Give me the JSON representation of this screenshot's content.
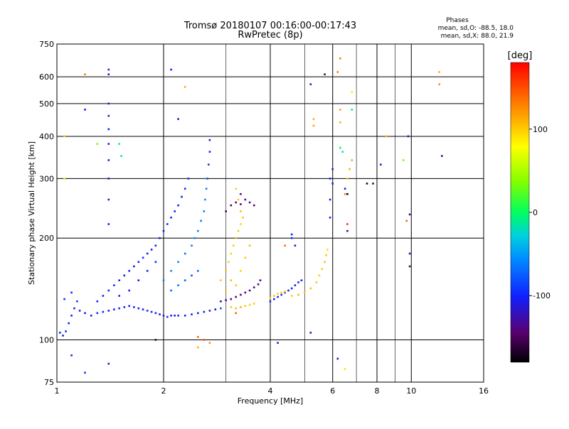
{
  "chart_data": {
    "type": "scatter",
    "title": "Tromsø 20180107 00:16:00-00:17:43",
    "subtitle": "RwPretec (8p)",
    "xlabel": "Frequency [MHz]",
    "ylabel": "Stationary phase Virtual Height [km]",
    "x_scale": "log",
    "y_scale": "log",
    "xlim": [
      1,
      16
    ],
    "ylim": [
      75,
      750
    ],
    "x_ticks": [
      1,
      2,
      4,
      6,
      8,
      10,
      16
    ],
    "x_ticks_minor": [
      3,
      5,
      7,
      9
    ],
    "y_ticks": [
      75,
      100,
      200,
      300,
      400,
      500,
      600,
      750
    ],
    "grid": true,
    "stats": {
      "heading": "Phases",
      "line_o": "mean, sd,O: -88.5, 18.0",
      "line_x": "mean, sd,X: 88.0, 21.9"
    },
    "colorbar": {
      "label": "[deg]",
      "range": [
        -180,
        180
      ],
      "ticks": [
        100,
        0,
        -100
      ]
    },
    "points": [
      [
        1.02,
        105,
        -100
      ],
      [
        1.04,
        103,
        -110
      ],
      [
        1.06,
        106,
        -95
      ],
      [
        1.08,
        112,
        -100
      ],
      [
        1.1,
        118,
        -105
      ],
      [
        1.12,
        124,
        -100
      ],
      [
        1.14,
        130,
        -90
      ],
      [
        1.05,
        132,
        -95
      ],
      [
        1.1,
        138,
        -100
      ],
      [
        1.16,
        122,
        -110
      ],
      [
        1.2,
        120,
        -100
      ],
      [
        1.25,
        118,
        -105
      ],
      [
        1.3,
        120,
        -95
      ],
      [
        1.35,
        121,
        -100
      ],
      [
        1.4,
        122,
        -110
      ],
      [
        1.45,
        123,
        -100
      ],
      [
        1.5,
        124,
        -95
      ],
      [
        1.55,
        125,
        -100
      ],
      [
        1.6,
        126,
        -105
      ],
      [
        1.65,
        125,
        -100
      ],
      [
        1.7,
        124,
        -110
      ],
      [
        1.75,
        123,
        -100
      ],
      [
        1.8,
        122,
        -95
      ],
      [
        1.85,
        121,
        -100
      ],
      [
        1.9,
        120,
        -105
      ],
      [
        1.95,
        119,
        -110
      ],
      [
        2.0,
        118,
        -100
      ],
      [
        2.05,
        117,
        -95
      ],
      [
        2.1,
        118,
        -100
      ],
      [
        2.15,
        118,
        -105
      ],
      [
        2.2,
        118,
        -100
      ],
      [
        2.3,
        118,
        -110
      ],
      [
        2.4,
        119,
        -100
      ],
      [
        2.5,
        120,
        -105
      ],
      [
        2.6,
        121,
        -100
      ],
      [
        2.7,
        122,
        -110
      ],
      [
        2.8,
        123,
        -120
      ],
      [
        2.9,
        124,
        -80
      ],
      [
        1.3,
        130,
        -100
      ],
      [
        1.35,
        135,
        -105
      ],
      [
        1.4,
        140,
        -100
      ],
      [
        1.45,
        145,
        -95
      ],
      [
        1.5,
        150,
        -100
      ],
      [
        1.55,
        155,
        -110
      ],
      [
        1.6,
        160,
        -100
      ],
      [
        1.65,
        165,
        -105
      ],
      [
        1.7,
        170,
        -100
      ],
      [
        1.75,
        175,
        -95
      ],
      [
        1.8,
        180,
        -100
      ],
      [
        1.85,
        185,
        -110
      ],
      [
        1.9,
        190,
        -100
      ],
      [
        1.95,
        200,
        -105
      ],
      [
        2.0,
        210,
        -100
      ],
      [
        2.05,
        220,
        -95
      ],
      [
        2.1,
        230,
        -100
      ],
      [
        2.15,
        240,
        -105
      ],
      [
        2.2,
        250,
        -100
      ],
      [
        2.25,
        265,
        -110
      ],
      [
        2.3,
        280,
        -100
      ],
      [
        2.35,
        300,
        -95
      ],
      [
        1.5,
        135,
        -100
      ],
      [
        1.6,
        140,
        -100
      ],
      [
        1.7,
        150,
        -105
      ],
      [
        1.8,
        160,
        -100
      ],
      [
        1.9,
        170,
        -95
      ],
      [
        2.0,
        150,
        -60
      ],
      [
        2.1,
        160,
        -55
      ],
      [
        2.2,
        170,
        -60
      ],
      [
        2.3,
        180,
        -65
      ],
      [
        2.4,
        190,
        -60
      ],
      [
        2.45,
        200,
        -55
      ],
      [
        2.5,
        210,
        -60
      ],
      [
        2.55,
        225,
        -65
      ],
      [
        2.6,
        240,
        -60
      ],
      [
        2.62,
        260,
        -55
      ],
      [
        2.64,
        280,
        -60
      ],
      [
        2.66,
        300,
        -80
      ],
      [
        2.68,
        330,
        -90
      ],
      [
        2.7,
        360,
        -100
      ],
      [
        2.7,
        390,
        -110
      ],
      [
        2.1,
        140,
        -70
      ],
      [
        2.2,
        145,
        -65
      ],
      [
        2.3,
        150,
        -70
      ],
      [
        2.4,
        155,
        -75
      ],
      [
        2.5,
        160,
        -70
      ],
      [
        1.4,
        220,
        -110
      ],
      [
        1.4,
        260,
        -110
      ],
      [
        1.4,
        300,
        -115
      ],
      [
        1.4,
        340,
        -110
      ],
      [
        1.4,
        380,
        -115
      ],
      [
        1.4,
        420,
        -110
      ],
      [
        1.4,
        460,
        -115
      ],
      [
        1.4,
        500,
        -110
      ],
      [
        1.4,
        610,
        -115
      ],
      [
        1.4,
        630,
        -110
      ],
      [
        1.52,
        350,
        -10
      ],
      [
        1.5,
        380,
        -5
      ],
      [
        1.2,
        480,
        -110
      ],
      [
        1.3,
        380,
        30
      ],
      [
        1.05,
        300,
        70
      ],
      [
        1.05,
        400,
        100
      ],
      [
        1.2,
        610,
        130
      ],
      [
        2.1,
        630,
        -100
      ],
      [
        2.3,
        560,
        110
      ],
      [
        2.2,
        450,
        -120
      ],
      [
        2.9,
        130,
        -140
      ],
      [
        3.0,
        131,
        -135
      ],
      [
        3.1,
        132,
        -140
      ],
      [
        3.2,
        134,
        -145
      ],
      [
        3.3,
        136,
        -140
      ],
      [
        3.4,
        138,
        -135
      ],
      [
        3.5,
        140,
        -140
      ],
      [
        3.6,
        143,
        -145
      ],
      [
        3.7,
        146,
        -140
      ],
      [
        3.75,
        150,
        -135
      ],
      [
        3.1,
        250,
        -150
      ],
      [
        3.2,
        255,
        -140
      ],
      [
        3.3,
        252,
        -145
      ],
      [
        3.0,
        240,
        -150
      ],
      [
        2.9,
        150,
        100
      ],
      [
        3.0,
        160,
        105
      ],
      [
        3.05,
        170,
        100
      ],
      [
        3.1,
        180,
        95
      ],
      [
        3.15,
        190,
        100
      ],
      [
        3.2,
        200,
        105
      ],
      [
        3.25,
        210,
        100
      ],
      [
        3.3,
        220,
        95
      ],
      [
        3.35,
        230,
        100
      ],
      [
        3.3,
        240,
        105
      ],
      [
        3.25,
        260,
        100
      ],
      [
        3.2,
        280,
        95
      ],
      [
        3.0,
        140,
        100
      ],
      [
        3.1,
        150,
        105
      ],
      [
        3.2,
        145,
        100
      ],
      [
        3.3,
        160,
        95
      ],
      [
        3.4,
        175,
        100
      ],
      [
        3.5,
        190,
        105
      ],
      [
        3.1,
        125,
        100
      ],
      [
        3.2,
        124,
        105
      ],
      [
        3.3,
        125,
        110
      ],
      [
        3.4,
        126,
        100
      ],
      [
        3.5,
        127,
        95
      ],
      [
        3.6,
        128,
        100
      ],
      [
        3.3,
        270,
        -140
      ],
      [
        3.4,
        260,
        -130
      ],
      [
        3.5,
        255,
        -135
      ],
      [
        3.6,
        250,
        -140
      ],
      [
        4.0,
        130,
        -100
      ],
      [
        4.1,
        132,
        -105
      ],
      [
        4.2,
        134,
        -100
      ],
      [
        4.3,
        136,
        -95
      ],
      [
        4.4,
        138,
        -100
      ],
      [
        4.5,
        140,
        -105
      ],
      [
        4.6,
        142,
        -100
      ],
      [
        4.7,
        145,
        -110
      ],
      [
        4.8,
        148,
        -100
      ],
      [
        4.9,
        150,
        -105
      ],
      [
        4.0,
        133,
        100
      ],
      [
        4.1,
        135,
        105
      ],
      [
        4.2,
        137,
        100
      ],
      [
        4.3,
        138,
        95
      ],
      [
        4.4,
        139,
        100
      ],
      [
        4.6,
        135,
        100
      ],
      [
        4.8,
        136,
        105
      ],
      [
        5.0,
        138,
        100
      ],
      [
        5.2,
        142,
        105
      ],
      [
        5.4,
        148,
        100
      ],
      [
        5.5,
        155,
        95
      ],
      [
        5.6,
        162,
        100
      ],
      [
        5.7,
        170,
        105
      ],
      [
        5.75,
        178,
        100
      ],
      [
        5.8,
        185,
        95
      ],
      [
        4.6,
        205,
        -100
      ],
      [
        4.6,
        200,
        -95
      ],
      [
        5.2,
        105,
        -120
      ],
      [
        4.2,
        98,
        -110
      ],
      [
        3.2,
        120,
        140
      ],
      [
        2.5,
        102,
        140
      ],
      [
        2.6,
        100,
        150
      ],
      [
        2.7,
        98,
        120
      ],
      [
        2.5,
        95,
        110
      ],
      [
        1.9,
        100,
        -160
      ],
      [
        1.4,
        85,
        -110
      ],
      [
        1.1,
        90,
        -100
      ],
      [
        1.2,
        80,
        -90
      ],
      [
        6.2,
        88,
        -110
      ],
      [
        6.5,
        82,
        90
      ],
      [
        5.9,
        230,
        -100
      ],
      [
        5.9,
        260,
        -105
      ],
      [
        6.0,
        290,
        -110
      ],
      [
        6.0,
        320,
        -100
      ],
      [
        5.9,
        300,
        -95
      ],
      [
        5.7,
        610,
        -150
      ],
      [
        5.2,
        570,
        -110
      ],
      [
        5.3,
        450,
        110
      ],
      [
        5.3,
        430,
        115
      ],
      [
        6.3,
        680,
        130
      ],
      [
        6.2,
        620,
        130
      ],
      [
        6.3,
        480,
        115
      ],
      [
        6.3,
        440,
        110
      ],
      [
        6.3,
        370,
        0
      ],
      [
        6.4,
        360,
        -20
      ],
      [
        6.5,
        280,
        -110
      ],
      [
        6.6,
        300,
        100
      ],
      [
        6.7,
        320,
        110
      ],
      [
        6.8,
        340,
        115
      ],
      [
        6.5,
        270,
        130
      ],
      [
        6.8,
        480,
        -10
      ],
      [
        6.8,
        540,
        60
      ],
      [
        6.6,
        270,
        -180
      ],
      [
        7.5,
        290,
        -160
      ],
      [
        7.8,
        290,
        -150
      ],
      [
        8.2,
        330,
        -110
      ],
      [
        8.5,
        400,
        110
      ],
      [
        9.8,
        400,
        -130
      ],
      [
        9.9,
        235,
        -140
      ],
      [
        9.9,
        180,
        -120
      ],
      [
        9.9,
        165,
        -150
      ],
      [
        9.7,
        225,
        140
      ],
      [
        12.0,
        620,
        110
      ],
      [
        12.0,
        570,
        120
      ],
      [
        12.2,
        350,
        -130
      ],
      [
        9.5,
        340,
        30
      ],
      [
        4.7,
        190,
        -120
      ],
      [
        4.4,
        190,
        140
      ],
      [
        6.6,
        220,
        160
      ],
      [
        6.6,
        210,
        -130
      ]
    ]
  }
}
